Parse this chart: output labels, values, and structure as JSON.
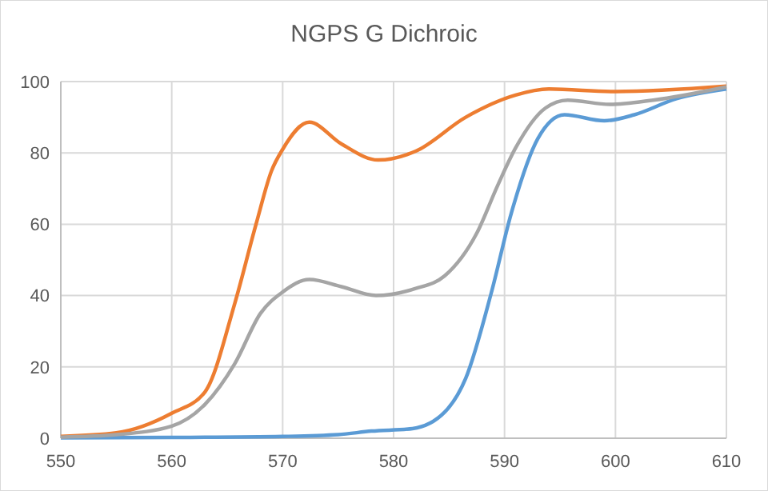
{
  "chart_data": {
    "type": "line",
    "title": "NGPS G Dichroic",
    "xlim": [
      550,
      610
    ],
    "xticks": [
      550,
      560,
      570,
      580,
      590,
      600,
      610
    ],
    "ylim": [
      0,
      100
    ],
    "yticks": [
      0,
      20,
      40,
      60,
      80,
      100
    ],
    "grid": true,
    "marker": "none",
    "line_style": "solid",
    "series": [
      {
        "color": "#5b9bd5",
        "x": [
          550,
          560,
          570,
          575,
          578,
          581.7,
          584.6,
          586.5,
          588.8,
          590.6,
          593,
          595.4,
          599,
          601.7,
          605.5,
          610
        ],
        "values": [
          0.1,
          0.2,
          0.5,
          1,
          2,
          2.7,
          7.3,
          16.8,
          40.7,
          63,
          84,
          90.7,
          89,
          90.7,
          95.2,
          97.9
        ]
      },
      {
        "color": "#ed7d31",
        "x": [
          550,
          555,
          560,
          563,
          565.7,
          567.6,
          569,
          570,
          572.4,
          575.3,
          578.6,
          582,
          586.5,
          591,
          594,
          600,
          610
        ],
        "values": [
          0.5,
          1.5,
          7,
          13,
          38,
          60,
          75,
          81,
          88.6,
          82.5,
          78,
          80.5,
          90,
          96.2,
          97.9,
          97.2,
          98.7
        ]
      },
      {
        "color": "#a5a5a5",
        "x": [
          550,
          555,
          560,
          563,
          565.7,
          568,
          570,
          572.4,
          575.3,
          578.4,
          582,
          584.6,
          587.5,
          589.4,
          591,
          593.7,
          595.7,
          599.5,
          603.4,
          610
        ],
        "values": [
          0.3,
          1,
          3.4,
          9.5,
          21,
          35,
          41,
          44.5,
          42.5,
          40,
          42,
          45.5,
          57.5,
          71,
          81.4,
          92.6,
          94.8,
          93.6,
          94.8,
          98.5
        ]
      }
    ]
  }
}
